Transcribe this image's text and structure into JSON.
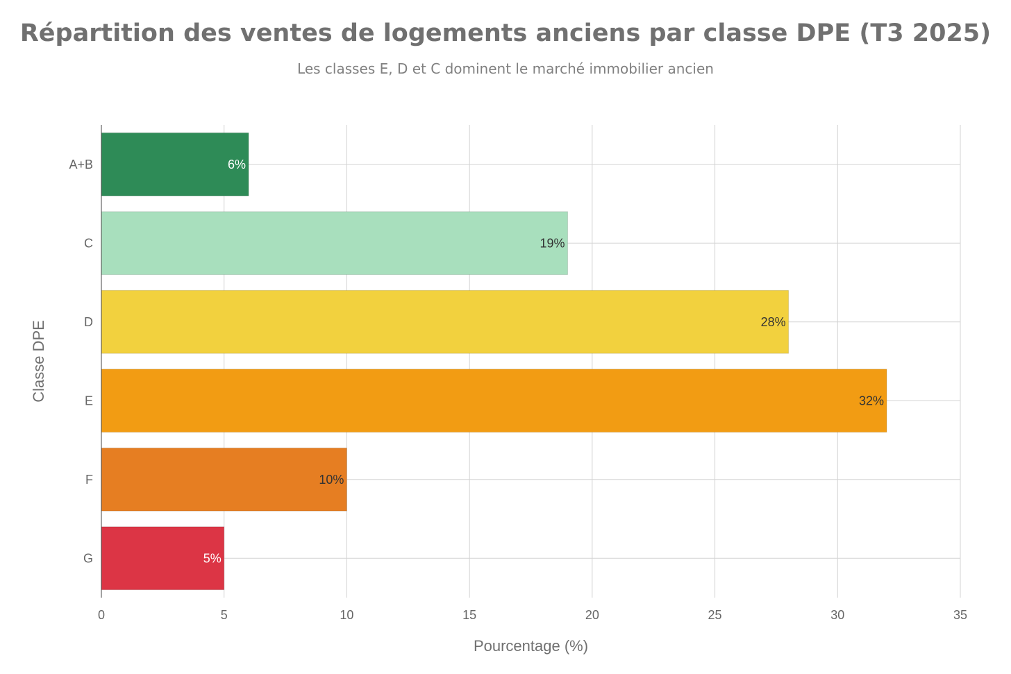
{
  "chart_data": {
    "type": "bar",
    "orientation": "horizontal",
    "title": "Répartition des ventes de logements anciens par classe DPE (T3 2025)",
    "subtitle": "Les classes E, D et C dominent le marché immobilier ancien",
    "xlabel": "Pourcentage (%)",
    "ylabel": "Classe DPE",
    "categories": [
      "A+B",
      "C",
      "D",
      "E",
      "F",
      "G"
    ],
    "values": [
      6,
      19,
      28,
      32,
      10,
      5
    ],
    "data_labels": [
      "6%",
      "19%",
      "28%",
      "32%",
      "10%",
      "5%"
    ],
    "colors": [
      "#2e8b57",
      "#a8dfbd",
      "#f2d13e",
      "#f29c13",
      "#e67e22",
      "#dc3545"
    ],
    "label_colors": [
      "#ffffff",
      "#333333",
      "#333333",
      "#333333",
      "#333333",
      "#ffffff"
    ],
    "xlim": [
      0,
      35
    ],
    "xticks": [
      0,
      5,
      10,
      15,
      20,
      25,
      30,
      35
    ],
    "grid": true,
    "legend": "none"
  }
}
